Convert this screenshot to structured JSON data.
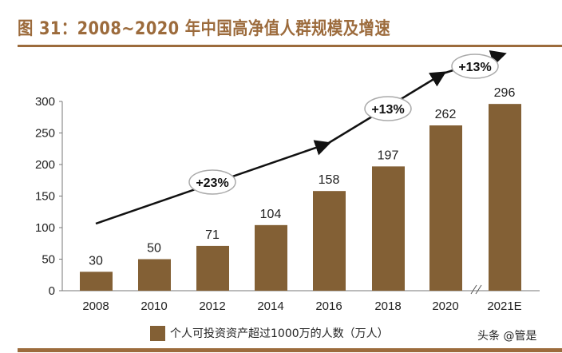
{
  "title": "图 31：2008~2020 年中国高净值人群规模及增速",
  "watermark": "头条 @管是",
  "chart_data": {
    "type": "bar",
    "categories": [
      "2008",
      "2010",
      "2012",
      "2014",
      "2016",
      "2018",
      "2020",
      "2021E"
    ],
    "series": [
      {
        "name": "个人可投资资产超过1000万的人数（万人）",
        "values": [
          30,
          50,
          71,
          104,
          158,
          197,
          262,
          296
        ]
      }
    ],
    "data_labels": [
      "30",
      "50",
      "71",
      "104",
      "158",
      "197",
      "262",
      "296"
    ],
    "ylim": [
      0,
      300
    ],
    "yticks": [
      "0",
      "50",
      "100",
      "150",
      "200",
      "250",
      "300"
    ],
    "grid": false,
    "legend": "bottom",
    "axis_break": "between 2020 and 2021E",
    "growth_annotations": [
      "+23%",
      "+13%",
      "+13%"
    ],
    "bar_color": "#836035",
    "accent_color": "#9c6b3c"
  }
}
